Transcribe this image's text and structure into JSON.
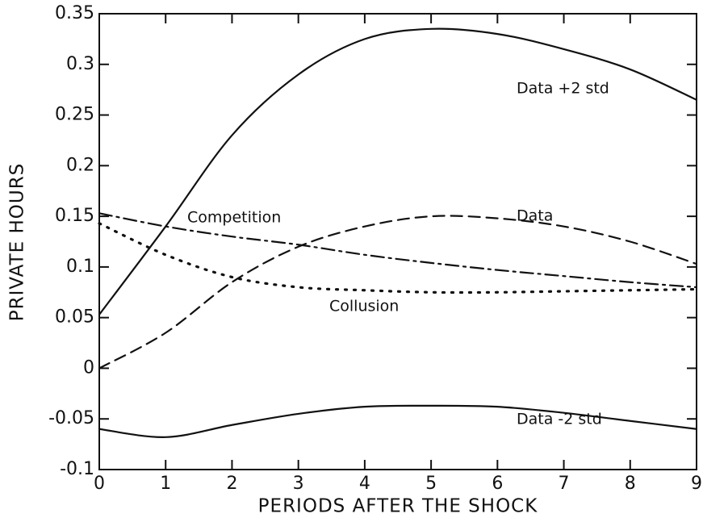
{
  "chart_data": {
    "type": "line",
    "x_label": "PERIODS AFTER THE SHOCK",
    "y_label": "PRIVATE HOURS",
    "x": [
      0,
      1,
      2,
      3,
      4,
      5,
      6,
      7,
      8,
      9
    ],
    "series": [
      {
        "name": "Data +2 std",
        "color": "#111111",
        "dash": "solid",
        "values": [
          0.053,
          0.14,
          0.23,
          0.29,
          0.325,
          0.335,
          0.33,
          0.315,
          0.295,
          0.265
        ]
      },
      {
        "name": "Data",
        "color": "#111111",
        "dash": "dashed",
        "values": [
          0.0,
          0.035,
          0.085,
          0.12,
          0.14,
          0.15,
          0.148,
          0.14,
          0.125,
          0.103
        ]
      },
      {
        "name": "Competition",
        "color": "#111111",
        "dash": "dashdot",
        "values": [
          0.153,
          0.14,
          0.13,
          0.122,
          0.112,
          0.104,
          0.097,
          0.091,
          0.085,
          0.08
        ]
      },
      {
        "name": "Collusion",
        "color": "#111111",
        "dash": "dotted",
        "values": [
          0.143,
          0.112,
          0.09,
          0.08,
          0.077,
          0.075,
          0.075,
          0.076,
          0.077,
          0.078
        ]
      },
      {
        "name": "Data -2 std",
        "color": "#111111",
        "dash": "solid",
        "values": [
          -0.06,
          -0.068,
          -0.056,
          -0.045,
          -0.038,
          -0.037,
          -0.038,
          -0.044,
          -0.052,
          -0.06
        ]
      }
    ],
    "xlim": [
      0,
      9
    ],
    "xticks": [
      0,
      1,
      2,
      3,
      4,
      5,
      6,
      7,
      8,
      9
    ],
    "ylim": [
      -0.1,
      0.35
    ],
    "yticks": [
      -0.1,
      -0.05,
      0,
      0.05,
      0.1,
      0.15,
      0.2,
      0.25,
      0.3,
      0.35
    ],
    "grid": false
  }
}
